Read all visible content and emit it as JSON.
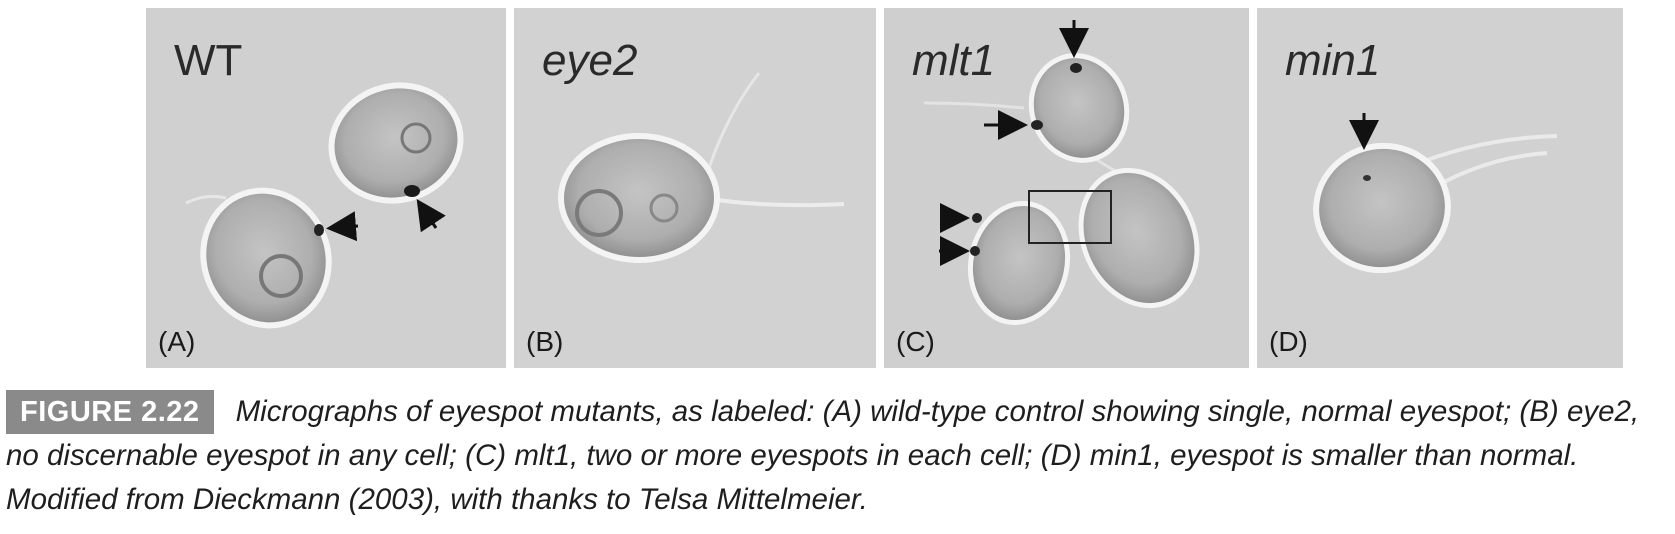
{
  "figure": {
    "label": "FIGURE 2.22",
    "caption": "Micrographs of eyespot mutants, as labeled: (A) wild-type control showing single, normal eyespot; (B) eye2, no discernable eyespot in any cell; (C) mlt1, two or more eyespots in each cell; (D) min1, eyespot is smaller than normal. Modified from Dieckmann (2003), with thanks to Telsa Mittelmeier."
  },
  "panels": [
    {
      "title": "WT",
      "label": "(A)"
    },
    {
      "title": "eye2",
      "label": "(B)"
    },
    {
      "title": "mlt1",
      "label": "(C)"
    },
    {
      "title": "min1",
      "label": "(D)"
    }
  ],
  "colors": {
    "background": "#cfcfcf",
    "cell_fill": "#b2b2b2",
    "halo": "#f4f4f4",
    "badge": "#8a8a8a"
  }
}
